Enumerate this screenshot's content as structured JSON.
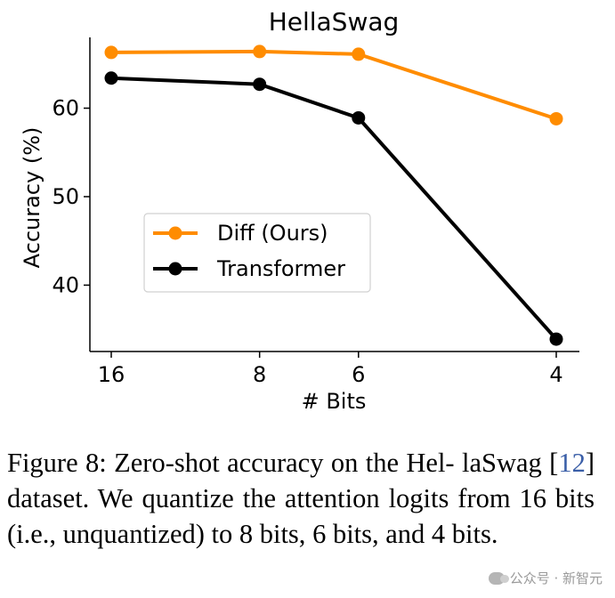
{
  "chart_data": {
    "type": "line",
    "title": "HellaSwag",
    "xlabel": "# Bits",
    "ylabel": "Accuracy (%)",
    "categories": [
      "16",
      "8",
      "6",
      "4"
    ],
    "x": [
      16,
      8,
      6,
      4
    ],
    "x_scale": "reciprocal",
    "yticks": [
      40,
      50,
      60
    ],
    "ylim": [
      32.5,
      68
    ],
    "grid": false,
    "legend_position": "center-left",
    "series": [
      {
        "name": "Diff (Ours)",
        "color": "#ff8c00",
        "values": [
          66.3,
          66.4,
          66.1,
          58.8
        ]
      },
      {
        "name": "Transformer",
        "color": "#000000",
        "values": [
          63.4,
          62.7,
          58.9,
          33.9
        ]
      }
    ]
  },
  "caption": {
    "line1": "Figure 8:  Zero-shot accuracy on the Hel-",
    "line2_pre": "laSwag [",
    "ref": "12",
    "line2_post": "] dataset. We quantize the attention",
    "line3": "logits from 16 bits (i.e., unquantized) to 8 bits,",
    "line4": "6 bits, and 4 bits."
  },
  "watermark": {
    "text": "公众号 · 新智元",
    "icon": "wechat-icon"
  }
}
